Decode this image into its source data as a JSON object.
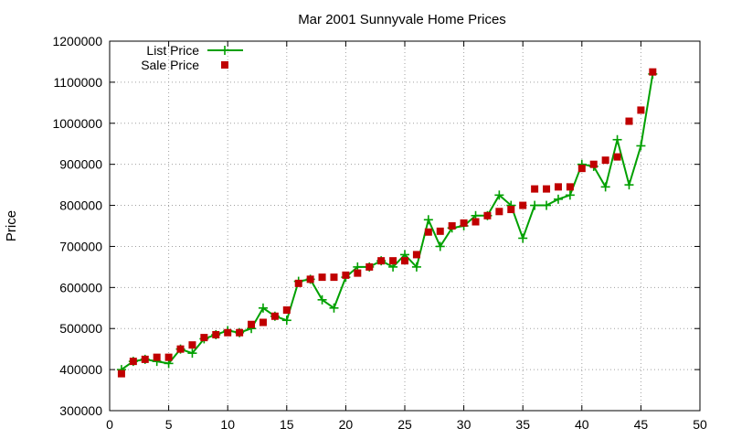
{
  "chart_data": {
    "type": "line",
    "title": "Mar 2001 Sunnyvale Home Prices",
    "xlabel": "",
    "ylabel": "Price",
    "xlim": [
      0,
      50
    ],
    "ylim": [
      300000,
      1200000
    ],
    "grid": true,
    "legend_position": "top-left",
    "x_ticks": [
      "0",
      "5",
      "10",
      "15",
      "20",
      "25",
      "30",
      "35",
      "40",
      "45",
      "50"
    ],
    "y_ticks": [
      "300000",
      "400000",
      "500000",
      "600000",
      "700000",
      "800000",
      "900000",
      "1000000",
      "1100000",
      "1200000"
    ],
    "series": [
      {
        "name": "List Price",
        "style": "line-points",
        "marker": "plus",
        "color": "#00a000",
        "x": [
          1,
          2,
          3,
          4,
          5,
          6,
          7,
          8,
          9,
          10,
          11,
          12,
          13,
          14,
          15,
          16,
          17,
          18,
          19,
          20,
          21,
          22,
          23,
          24,
          25,
          26,
          27,
          28,
          29,
          30,
          31,
          32,
          33,
          34,
          35,
          36,
          37,
          38,
          39,
          40,
          41,
          42,
          43,
          44,
          45,
          46
        ],
        "y": [
          400000,
          420000,
          425000,
          420000,
          415000,
          450000,
          440000,
          475000,
          485000,
          495000,
          490000,
          500000,
          550000,
          530000,
          520000,
          615000,
          620000,
          570000,
          550000,
          625000,
          650000,
          650000,
          665000,
          650000,
          680000,
          650000,
          765000,
          700000,
          745000,
          750000,
          775000,
          775000,
          825000,
          800000,
          720000,
          800000,
          800000,
          815000,
          825000,
          900000,
          895000,
          845000,
          960000,
          850000,
          945000,
          1120000
        ]
      },
      {
        "name": "Sale Price",
        "style": "points",
        "marker": "square",
        "color": "#c00000",
        "x": [
          1,
          2,
          3,
          4,
          5,
          6,
          7,
          8,
          9,
          10,
          11,
          12,
          13,
          14,
          15,
          16,
          17,
          18,
          19,
          20,
          21,
          22,
          23,
          24,
          25,
          26,
          27,
          28,
          29,
          30,
          31,
          32,
          33,
          34,
          35,
          36,
          37,
          38,
          39,
          40,
          41,
          42,
          43,
          44,
          45,
          46
        ],
        "y": [
          390000,
          420000,
          425000,
          430000,
          430000,
          450000,
          460000,
          478000,
          485000,
          490000,
          490000,
          510000,
          515000,
          530000,
          545000,
          610000,
          620000,
          625000,
          625000,
          630000,
          635000,
          650000,
          665000,
          665000,
          665000,
          680000,
          735000,
          737000,
          750000,
          757000,
          760000,
          775000,
          785000,
          790000,
          800000,
          840000,
          840000,
          845000,
          845000,
          890000,
          900000,
          910000,
          918000,
          1005000,
          1032000,
          1125000
        ]
      }
    ]
  }
}
